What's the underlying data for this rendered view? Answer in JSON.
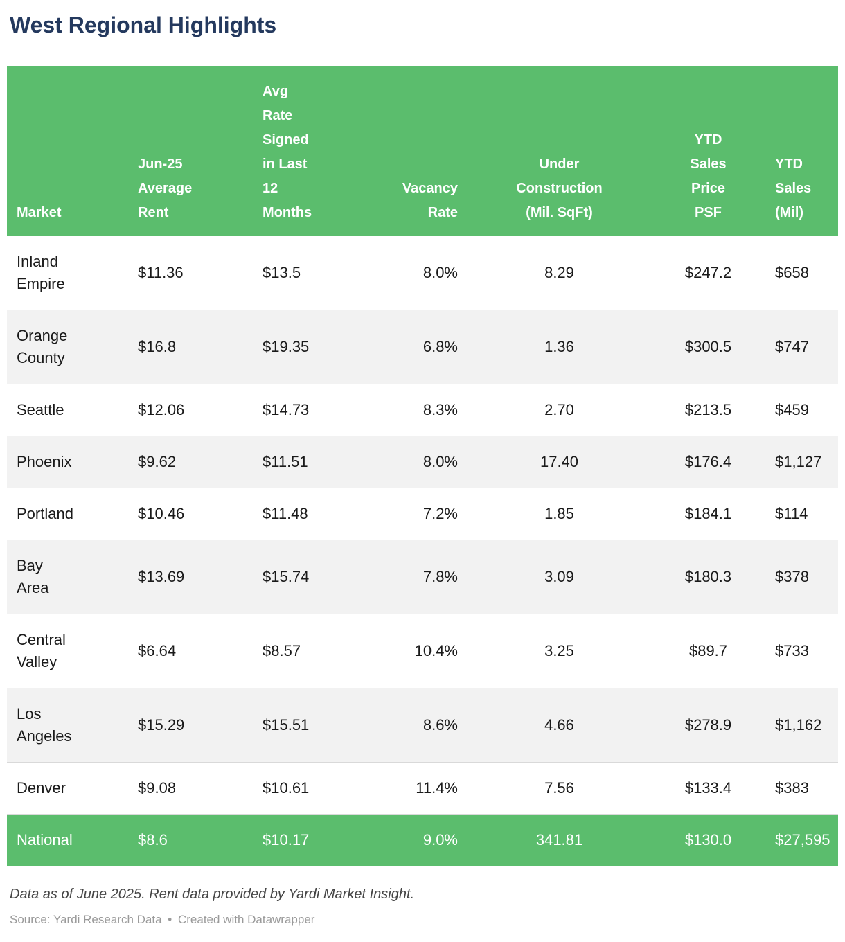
{
  "chart_data": {
    "type": "table",
    "title": "West Regional Highlights",
    "columns": [
      {
        "key": "market",
        "label": "Market",
        "align": "left"
      },
      {
        "key": "avg-rent",
        "label": "Jun-25\nAverage\nRent",
        "align": "left"
      },
      {
        "key": "avg-rate-signed",
        "label": "Avg\nRate\nSigned\nin Last\n12\nMonths",
        "align": "left"
      },
      {
        "key": "vacancy-rate",
        "label": "Vacancy\nRate",
        "align": "right"
      },
      {
        "key": "under-construction",
        "label": "Under\nConstruction\n(Mil. SqFt)",
        "align": "center"
      },
      {
        "key": "ytd-sales-price-psf",
        "label": "YTD\nSales\nPrice\nPSF",
        "align": "center"
      },
      {
        "key": "ytd-sales-mil",
        "label": "YTD\nSales\n(Mil)",
        "align": "left"
      }
    ],
    "rows": [
      {
        "cells": [
          "Inland\nEmpire",
          "$11.36",
          "$13.5",
          "8.0%",
          "8.29",
          "$247.2",
          "$658"
        ],
        "highlight": false
      },
      {
        "cells": [
          "Orange\nCounty",
          "$16.8",
          "$19.35",
          "6.8%",
          "1.36",
          "$300.5",
          "$747"
        ],
        "highlight": false
      },
      {
        "cells": [
          "Seattle",
          "$12.06",
          "$14.73",
          "8.3%",
          "2.70",
          "$213.5",
          "$459"
        ],
        "highlight": false
      },
      {
        "cells": [
          "Phoenix",
          "$9.62",
          "$11.51",
          "8.0%",
          "17.40",
          "$176.4",
          "$1,127"
        ],
        "highlight": false
      },
      {
        "cells": [
          "Portland",
          "$10.46",
          "$11.48",
          "7.2%",
          "1.85",
          "$184.1",
          "$114"
        ],
        "highlight": false
      },
      {
        "cells": [
          "Bay\nArea",
          "$13.69",
          "$15.74",
          "7.8%",
          "3.09",
          "$180.3",
          "$378"
        ],
        "highlight": false
      },
      {
        "cells": [
          "Central\nValley",
          "$6.64",
          "$8.57",
          "10.4%",
          "3.25",
          "$89.7",
          "$733"
        ],
        "highlight": false
      },
      {
        "cells": [
          "Los\nAngeles",
          "$15.29",
          "$15.51",
          "8.6%",
          "4.66",
          "$278.9",
          "$1,162"
        ],
        "highlight": false
      },
      {
        "cells": [
          "Denver",
          "$9.08",
          "$10.61",
          "11.4%",
          "7.56",
          "$133.4",
          "$383"
        ],
        "highlight": false
      },
      {
        "cells": [
          "National",
          "$8.6",
          "$10.17",
          "9.0%",
          "341.81",
          "$130.0",
          "$27,595"
        ],
        "highlight": true
      }
    ],
    "notes": "Data as of June 2025. Rent data provided by Yardi Market Insight.",
    "source_label": "Source: Yardi Research Data",
    "source_separator": "•",
    "credit": "Created with Datawrapper"
  },
  "colors": {
    "header_green": "#5bbd6d",
    "title_navy": "#24395e",
    "zebra_gray": "#f2f2f2",
    "row_border": "#d9d9d9",
    "notes_text": "#454545",
    "source_text": "#9a9a9a"
  }
}
